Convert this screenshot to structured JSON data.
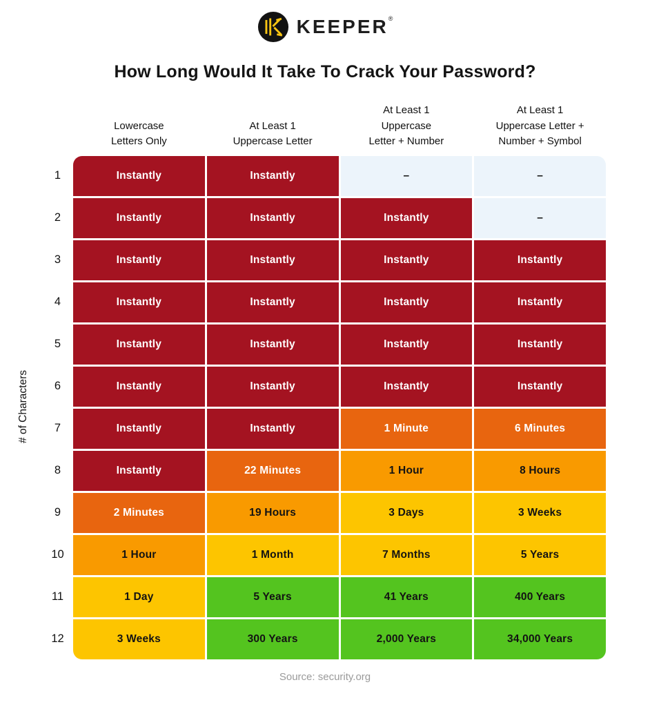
{
  "header": {
    "brand": "KEEPER",
    "registered": "®"
  },
  "title": "How Long Would It Take To Crack Your Password?",
  "source": "Source: security.org",
  "chart_data": {
    "type": "table",
    "title": "How Long Would It Take To Crack Your Password?",
    "ylabel": "# of Characters",
    "columns": [
      [
        "Lowercase",
        "Letters Only"
      ],
      [
        "At Least 1",
        "Uppercase Letter"
      ],
      [
        "At Least 1",
        "Uppercase",
        "Letter  +  Number"
      ],
      [
        "At Least 1",
        "Uppercase Letter +",
        "Number + Symbol"
      ]
    ],
    "palette": {
      "red": {
        "bg": "#A41321",
        "text": "#ffffff"
      },
      "odark": {
        "bg": "#E8650F",
        "text": "#ffffff"
      },
      "orange": {
        "bg": "#F99A00",
        "text": "#131313"
      },
      "gold": {
        "bg": "#FDC500",
        "text": "#131313"
      },
      "green": {
        "bg": "#54C41F",
        "text": "#131313"
      },
      "empty": {
        "bg": "#ECF4FB",
        "text": "#131313"
      }
    },
    "logo_colors": {
      "circle": "#121212",
      "glyph": "#F9C513",
      "wordmark": "#1d1d1d"
    },
    "rows": [
      {
        "n": "1",
        "cells": [
          {
            "t": "Instantly",
            "c": "red"
          },
          {
            "t": "Instantly",
            "c": "red"
          },
          {
            "t": "–",
            "c": "empty"
          },
          {
            "t": "–",
            "c": "empty"
          }
        ]
      },
      {
        "n": "2",
        "cells": [
          {
            "t": "Instantly",
            "c": "red"
          },
          {
            "t": "Instantly",
            "c": "red"
          },
          {
            "t": "Instantly",
            "c": "red"
          },
          {
            "t": "–",
            "c": "empty"
          }
        ]
      },
      {
        "n": "3",
        "cells": [
          {
            "t": "Instantly",
            "c": "red"
          },
          {
            "t": "Instantly",
            "c": "red"
          },
          {
            "t": "Instantly",
            "c": "red"
          },
          {
            "t": "Instantly",
            "c": "red"
          }
        ]
      },
      {
        "n": "4",
        "cells": [
          {
            "t": "Instantly",
            "c": "red"
          },
          {
            "t": "Instantly",
            "c": "red"
          },
          {
            "t": "Instantly",
            "c": "red"
          },
          {
            "t": "Instantly",
            "c": "red"
          }
        ]
      },
      {
        "n": "5",
        "cells": [
          {
            "t": "Instantly",
            "c": "red"
          },
          {
            "t": "Instantly",
            "c": "red"
          },
          {
            "t": "Instantly",
            "c": "red"
          },
          {
            "t": "Instantly",
            "c": "red"
          }
        ]
      },
      {
        "n": "6",
        "cells": [
          {
            "t": "Instantly",
            "c": "red"
          },
          {
            "t": "Instantly",
            "c": "red"
          },
          {
            "t": "Instantly",
            "c": "red"
          },
          {
            "t": "Instantly",
            "c": "red"
          }
        ]
      },
      {
        "n": "7",
        "cells": [
          {
            "t": "Instantly",
            "c": "red"
          },
          {
            "t": "Instantly",
            "c": "red"
          },
          {
            "t": "1 Minute",
            "c": "odark"
          },
          {
            "t": "6 Minutes",
            "c": "odark"
          }
        ]
      },
      {
        "n": "8",
        "cells": [
          {
            "t": "Instantly",
            "c": "red"
          },
          {
            "t": "22 Minutes",
            "c": "odark"
          },
          {
            "t": "1 Hour",
            "c": "orange"
          },
          {
            "t": "8 Hours",
            "c": "orange"
          }
        ]
      },
      {
        "n": "9",
        "cells": [
          {
            "t": "2 Minutes",
            "c": "odark"
          },
          {
            "t": "19 Hours",
            "c": "orange"
          },
          {
            "t": "3 Days",
            "c": "gold"
          },
          {
            "t": "3 Weeks",
            "c": "gold"
          }
        ]
      },
      {
        "n": "10",
        "cells": [
          {
            "t": "1 Hour",
            "c": "orange"
          },
          {
            "t": "1 Month",
            "c": "gold"
          },
          {
            "t": "7 Months",
            "c": "gold"
          },
          {
            "t": "5 Years",
            "c": "gold"
          }
        ]
      },
      {
        "n": "11",
        "cells": [
          {
            "t": "1 Day",
            "c": "gold"
          },
          {
            "t": "5 Years",
            "c": "green"
          },
          {
            "t": "41 Years",
            "c": "green"
          },
          {
            "t": "400 Years",
            "c": "green"
          }
        ]
      },
      {
        "n": "12",
        "cells": [
          {
            "t": "3 Weeks",
            "c": "gold"
          },
          {
            "t": "300 Years",
            "c": "green"
          },
          {
            "t": "2,000 Years",
            "c": "green"
          },
          {
            "t": "34,000 Years",
            "c": "green"
          }
        ]
      }
    ]
  }
}
